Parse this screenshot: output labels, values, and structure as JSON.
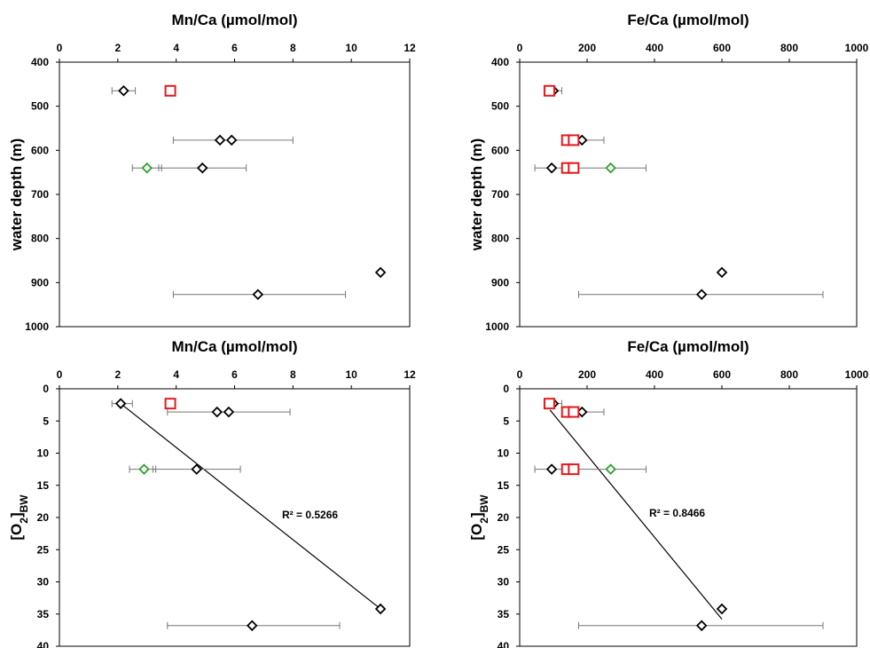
{
  "chart_data": [
    {
      "type": "scatter",
      "title": "Mn/Ca (µmol/mol)",
      "ylabel": "water depth (m)",
      "xlim": [
        0,
        12
      ],
      "xticks": [
        0,
        2,
        4,
        6,
        8,
        10,
        12
      ],
      "ylim": [
        400,
        1000
      ],
      "yticks": [
        400,
        500,
        600,
        700,
        800,
        900,
        1000
      ],
      "y_inverted": true,
      "x_axis_position": "top",
      "series": [
        {
          "marker": "diamond",
          "color": "#000000",
          "points": [
            {
              "x": 2.2,
              "y": 465,
              "xerr": [
                1.8,
                2.6
              ]
            },
            {
              "x": 5.5,
              "y": 577,
              "xerr": [
                3.9,
                8.0
              ]
            },
            {
              "x": 5.9,
              "y": 577
            },
            {
              "x": 4.9,
              "y": 640,
              "xerr": [
                3.4,
                6.4
              ]
            },
            {
              "x": 11.0,
              "y": 877
            },
            {
              "x": 6.8,
              "y": 927,
              "xerr": [
                3.9,
                9.8
              ]
            }
          ]
        },
        {
          "marker": "diamond",
          "color": "#2ca02c",
          "points": [
            {
              "x": 3.0,
              "y": 640,
              "xerr": [
                2.5,
                3.5
              ]
            }
          ]
        },
        {
          "marker": "square",
          "color": "#e31a1c",
          "points": [
            {
              "x": 3.8,
              "y": 465
            }
          ]
        }
      ]
    },
    {
      "type": "scatter",
      "title": "Fe/Ca (µmol/mol)",
      "ylabel": "water depth (m)",
      "xlim": [
        0,
        1000
      ],
      "xticks": [
        0,
        200,
        400,
        600,
        800,
        1000
      ],
      "ylim": [
        400,
        1000
      ],
      "yticks": [
        400,
        500,
        600,
        700,
        800,
        900,
        1000
      ],
      "y_inverted": true,
      "x_axis_position": "top",
      "series": [
        {
          "marker": "diamond",
          "color": "#000000",
          "points": [
            {
              "x": 100,
              "y": 465,
              "xerr": [
                80,
                125
              ]
            },
            {
              "x": 140,
              "y": 577
            },
            {
              "x": 185,
              "y": 577,
              "xerr": [
                130,
                250
              ]
            },
            {
              "x": 95,
              "y": 640,
              "xerr": [
                45,
                375
              ]
            },
            {
              "x": 600,
              "y": 877
            },
            {
              "x": 540,
              "y": 927,
              "xerr": [
                175,
                900
              ]
            }
          ]
        },
        {
          "marker": "diamond",
          "color": "#2ca02c",
          "points": [
            {
              "x": 270,
              "y": 640
            }
          ]
        },
        {
          "marker": "square",
          "color": "#e31a1c",
          "points": [
            {
              "x": 88,
              "y": 465
            },
            {
              "x": 140,
              "y": 577
            },
            {
              "x": 160,
              "y": 577
            },
            {
              "x": 140,
              "y": 640
            },
            {
              "x": 160,
              "y": 640
            }
          ]
        }
      ]
    },
    {
      "type": "scatter",
      "title": "Mn/Ca (µmol/mol)",
      "ylabel": "[O2]BW",
      "xlim": [
        0,
        12
      ],
      "xticks": [
        0,
        2,
        4,
        6,
        8,
        10,
        12
      ],
      "ylim": [
        0,
        40
      ],
      "yticks": [
        0,
        5,
        10,
        15,
        20,
        25,
        30,
        35,
        40
      ],
      "y_inverted": true,
      "x_axis_position": "top",
      "trendline": {
        "r2_label": "R² = 0.5266",
        "from": {
          "x": 2.1,
          "y": 2.3
        },
        "to": {
          "x": 11.0,
          "y": 34.2
        }
      },
      "series": [
        {
          "marker": "diamond",
          "color": "#000000",
          "points": [
            {
              "x": 2.1,
              "y": 2.3,
              "xerr": [
                1.8,
                2.5
              ]
            },
            {
              "x": 5.4,
              "y": 3.6,
              "xerr": [
                3.7,
                7.9
              ]
            },
            {
              "x": 5.8,
              "y": 3.6
            },
            {
              "x": 4.7,
              "y": 12.5,
              "xerr": [
                3.2,
                6.2
              ]
            },
            {
              "x": 11.0,
              "y": 34.2
            },
            {
              "x": 6.6,
              "y": 36.8,
              "xerr": [
                3.7,
                9.6
              ]
            }
          ]
        },
        {
          "marker": "diamond",
          "color": "#2ca02c",
          "points": [
            {
              "x": 2.9,
              "y": 12.5,
              "xerr": [
                2.4,
                3.3
              ]
            }
          ]
        },
        {
          "marker": "square",
          "color": "#e31a1c",
          "points": [
            {
              "x": 3.8,
              "y": 2.3
            }
          ]
        }
      ]
    },
    {
      "type": "scatter",
      "title": "Fe/Ca (µmol/mol)",
      "ylabel": "[O2]BW",
      "xlim": [
        0,
        1000
      ],
      "xticks": [
        0,
        200,
        400,
        600,
        800,
        1000
      ],
      "ylim": [
        0,
        40
      ],
      "yticks": [
        0,
        5,
        10,
        15,
        20,
        25,
        30,
        35,
        40
      ],
      "y_inverted": true,
      "x_axis_position": "top",
      "trendline": {
        "r2_label": "R² = 0.8466",
        "from": {
          "x": 90,
          "y": 3.3
        },
        "to": {
          "x": 600,
          "y": 35.8
        }
      },
      "series": [
        {
          "marker": "diamond",
          "color": "#000000",
          "points": [
            {
              "x": 100,
              "y": 2.3,
              "xerr": [
                80,
                125
              ]
            },
            {
              "x": 140,
              "y": 3.6
            },
            {
              "x": 185,
              "y": 3.6,
              "xerr": [
                130,
                250
              ]
            },
            {
              "x": 95,
              "y": 12.5,
              "xerr": [
                45,
                375
              ]
            },
            {
              "x": 600,
              "y": 34.2
            },
            {
              "x": 540,
              "y": 36.8,
              "xerr": [
                175,
                900
              ]
            }
          ]
        },
        {
          "marker": "diamond",
          "color": "#2ca02c",
          "points": [
            {
              "x": 270,
              "y": 12.5
            }
          ]
        },
        {
          "marker": "square",
          "color": "#e31a1c",
          "points": [
            {
              "x": 88,
              "y": 2.3
            },
            {
              "x": 140,
              "y": 3.6
            },
            {
              "x": 160,
              "y": 3.6
            },
            {
              "x": 140,
              "y": 12.5
            },
            {
              "x": 160,
              "y": 12.5
            }
          ]
        }
      ]
    }
  ]
}
